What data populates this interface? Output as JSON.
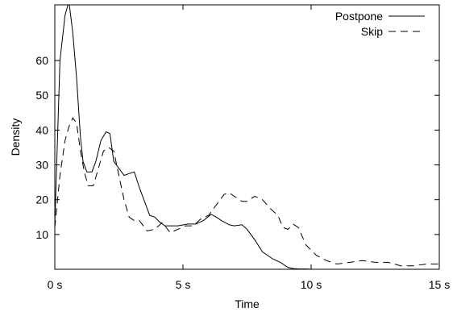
{
  "chart_data": {
    "type": "line",
    "title": "",
    "xlabel": "Time",
    "ylabel": "Density",
    "xlim": [
      0,
      15
    ],
    "ylim": [
      0,
      76
    ],
    "x_ticks": [
      {
        "value": 0,
        "label": "0 s"
      },
      {
        "value": 5,
        "label": "5 s"
      },
      {
        "value": 10,
        "label": "10 s"
      },
      {
        "value": 15,
        "label": "15 s"
      }
    ],
    "y_ticks": [
      {
        "value": 10,
        "label": "10"
      },
      {
        "value": 20,
        "label": "20"
      },
      {
        "value": 30,
        "label": "30"
      },
      {
        "value": 40,
        "label": "40"
      },
      {
        "value": 50,
        "label": "50"
      },
      {
        "value": 60,
        "label": "60"
      }
    ],
    "grid": false,
    "legend_position": "top-right",
    "series": [
      {
        "name": "Postpone",
        "style": "solid",
        "color": "#000000",
        "x": [
          0,
          0.2,
          0.4,
          0.55,
          0.7,
          0.85,
          1.0,
          1.1,
          1.25,
          1.45,
          1.6,
          1.8,
          2.0,
          2.15,
          2.3,
          2.5,
          2.7,
          2.9,
          3.1,
          3.3,
          3.5,
          3.7,
          3.9,
          4.1,
          4.3,
          4.5,
          4.8,
          5.2,
          5.5,
          5.8,
          6.1,
          6.3,
          6.5,
          6.8,
          7.0,
          7.3,
          7.5,
          7.8,
          8.1,
          8.5,
          8.8,
          9.1,
          9.3,
          9.5,
          9.8,
          10.0,
          10.5,
          11,
          12,
          13,
          14,
          15
        ],
        "y": [
          13,
          60,
          73,
          77,
          68,
          55,
          38,
          31,
          28,
          28,
          31,
          37,
          39.5,
          39,
          31,
          29,
          27,
          27.5,
          28,
          23.5,
          19.5,
          15.5,
          15,
          13.5,
          12.5,
          12.5,
          12.5,
          13,
          13,
          14,
          15.8,
          15,
          14,
          12.8,
          12.5,
          12.8,
          11.5,
          8.5,
          5,
          3,
          2,
          0.5,
          0.2,
          0.1,
          0.1,
          0,
          0,
          0,
          0,
          0,
          0,
          0
        ]
      },
      {
        "name": "Skip",
        "style": "dashed",
        "color": "#000000",
        "x": [
          0,
          0.2,
          0.4,
          0.55,
          0.7,
          0.85,
          1.0,
          1.15,
          1.3,
          1.5,
          1.7,
          1.9,
          2.1,
          2.3,
          2.5,
          2.7,
          2.9,
          3.1,
          3.3,
          3.6,
          3.9,
          4.2,
          4.5,
          4.8,
          5.1,
          5.4,
          5.7,
          6.0,
          6.3,
          6.6,
          6.8,
          7.0,
          7.3,
          7.5,
          7.8,
          8.1,
          8.4,
          8.7,
          8.9,
          9.1,
          9.3,
          9.5,
          9.8,
          10.2,
          10.6,
          11.0,
          11.5,
          12,
          12.5,
          13,
          13.5,
          14,
          14.5,
          15
        ],
        "y": [
          12,
          27,
          37,
          41,
          43.5,
          42,
          34,
          28,
          24,
          24,
          29,
          34,
          35,
          34,
          27,
          20,
          15,
          14,
          14,
          11,
          11.5,
          13.5,
          10.5,
          11.5,
          12.5,
          12.5,
          14.5,
          15.5,
          18.5,
          21.5,
          22,
          21,
          19.5,
          19.5,
          21,
          20,
          17.5,
          15.5,
          12,
          11.5,
          13,
          12,
          7,
          4,
          2.5,
          1.5,
          2,
          2.5,
          2,
          2,
          1,
          1,
          1.5,
          1.5
        ]
      }
    ]
  }
}
